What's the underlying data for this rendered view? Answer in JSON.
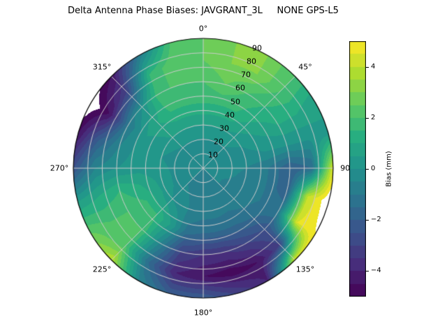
{
  "chart_data": {
    "type": "heatmap",
    "subtype": "polar_filled_contour",
    "title": "Delta Antenna Phase Biases: JAVGRANT_3L     NONE GPS-L5",
    "colormap": "viridis",
    "viridis_stops": [
      "#440154",
      "#472d7b",
      "#3b528b",
      "#2c728e",
      "#21918c",
      "#28ae80",
      "#5ec962",
      "#addc30",
      "#fde725"
    ],
    "value_range": [
      -5,
      5
    ],
    "contour_step": 0.5,
    "out_of_range_color": "#ffffff",
    "grid_line_color": "#cccccc",
    "outer_circle_color": "#000000",
    "azimuth_ticks": [
      "0°",
      "45°",
      "90°",
      "135°",
      "180°",
      "225°",
      "270°",
      "315°"
    ],
    "radial_ticks": [
      "10",
      "20",
      "30",
      "40",
      "50",
      "60",
      "70",
      "80",
      "90"
    ],
    "colorbar": {
      "label": "Bias (mm)",
      "ticks": [
        "4",
        "2",
        "0",
        "−2",
        "−4"
      ],
      "tick_values": [
        4,
        2,
        0,
        -2,
        -4
      ]
    },
    "grid": {
      "azimuth_deg": [
        0,
        15,
        30,
        45,
        60,
        75,
        90,
        105,
        120,
        135,
        150,
        165,
        180,
        195,
        210,
        225,
        240,
        255,
        270,
        285,
        300,
        315,
        330,
        345,
        360
      ],
      "zenith_deg": [
        0,
        15,
        30,
        45,
        60,
        75,
        90
      ],
      "bias_mm": [
        [
          -0.5,
          -0.5,
          -0.5,
          -0.5,
          -0.5,
          -0.5,
          -0.5,
          -0.5,
          -0.5,
          -0.5,
          -0.5,
          -0.5,
          -0.5,
          -0.5,
          -0.5,
          -0.5,
          -0.5,
          -0.5,
          -0.5,
          -0.5,
          -0.5,
          -0.5,
          -0.5,
          -0.5,
          -0.5
        ],
        [
          -0.3,
          -0.3,
          -0.3,
          -0.2,
          -0.2,
          -0.3,
          -0.4,
          -0.4,
          -0.5,
          -0.5,
          -0.6,
          -0.6,
          -0.6,
          -0.6,
          -0.6,
          -0.5,
          -0.4,
          -0.3,
          -0.3,
          -0.3,
          -0.3,
          -0.3,
          -0.3,
          -0.3,
          -0.3
        ],
        [
          0.5,
          0.5,
          0.5,
          0.3,
          0.0,
          -0.2,
          -0.5,
          -0.6,
          -0.7,
          -0.7,
          -0.8,
          -0.7,
          -0.7,
          -0.6,
          -0.3,
          0.0,
          0.3,
          0.3,
          0.2,
          0.0,
          0.2,
          0.5,
          0.5,
          0.5,
          0.5
        ],
        [
          1.5,
          1.5,
          1.5,
          1.0,
          0.5,
          0.0,
          -1.0,
          -1.0,
          -1.0,
          -1.2,
          -1.5,
          -1.5,
          -1.5,
          -1.2,
          0.5,
          1.5,
          1.5,
          1.0,
          0.3,
          0.3,
          0.5,
          1.0,
          1.5,
          1.5,
          1.5
        ],
        [
          2.0,
          2.5,
          2.0,
          1.5,
          1.0,
          0.0,
          -2.0,
          -2.0,
          -1.0,
          -2.5,
          -3.0,
          -3.5,
          -3.5,
          -3.0,
          -0.5,
          2.0,
          2.0,
          1.5,
          0.0,
          -0.5,
          -1.0,
          0.0,
          2.0,
          2.0,
          2.0
        ],
        [
          2.5,
          3.0,
          3.0,
          2.0,
          1.0,
          0.0,
          -1.5,
          4.0,
          4.5,
          -3.0,
          -4.5,
          -4.8,
          -4.5,
          -4.0,
          -1.5,
          2.0,
          2.0,
          1.0,
          -0.5,
          -2.0,
          -4.5,
          -3.0,
          1.5,
          2.5,
          2.5
        ],
        [
          2.5,
          3.0,
          3.0,
          2.0,
          0.5,
          0.5,
          4.5,
          5.5,
          5.0,
          4.5,
          -4.0,
          -3.0,
          -2.0,
          -2.0,
          -0.5,
          4.0,
          2.5,
          0.5,
          -2.5,
          -4.5,
          -5.5,
          -4.5,
          -1.0,
          2.0,
          2.5
        ]
      ]
    }
  }
}
